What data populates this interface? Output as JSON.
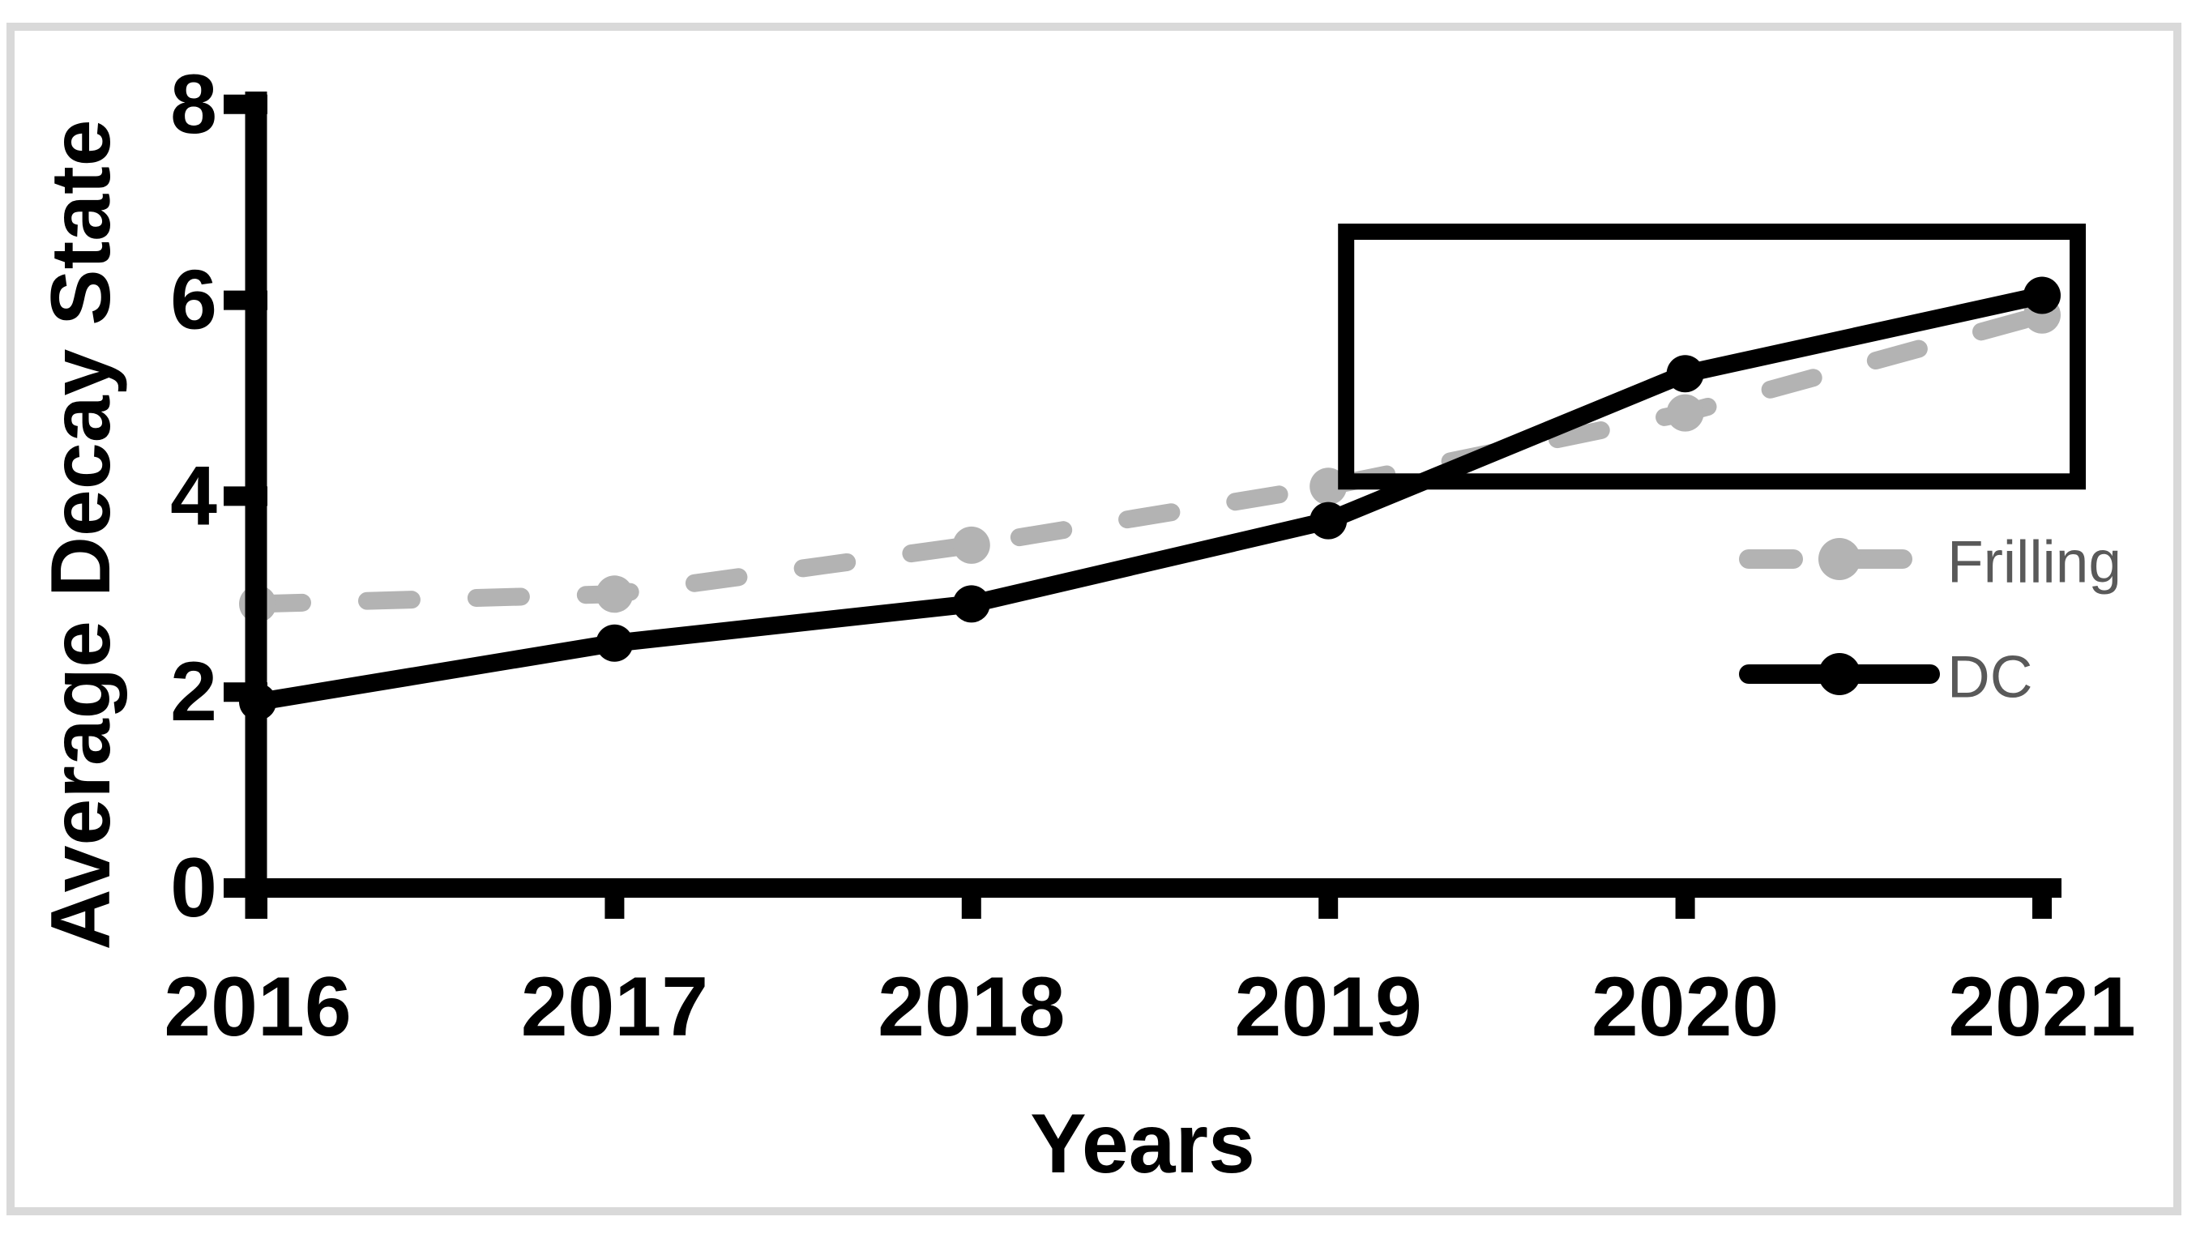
{
  "figure": {
    "type": "line-chart-figure",
    "background": "#ffffff"
  },
  "chart_data": {
    "type": "line",
    "title": "",
    "xlabel": "Years",
    "ylabel": "Average Decay State",
    "categories": [
      "2016",
      "2017",
      "2018",
      "2019",
      "2020",
      "2021"
    ],
    "y_ticks": [
      "0",
      "2",
      "4",
      "6",
      "8"
    ],
    "ylim": [
      0,
      8
    ],
    "grid": false,
    "legend_position": "right-middle",
    "series": [
      {
        "name": "Frilling",
        "color": "#b3b3b3",
        "line_style": "dashed",
        "marker": "circle",
        "values": [
          2.9,
          3.0,
          3.5,
          4.1,
          4.85,
          5.85
        ]
      },
      {
        "name": "DC",
        "color": "#000000",
        "line_style": "solid",
        "marker": "circle",
        "values": [
          1.9,
          2.5,
          2.9,
          3.75,
          5.25,
          6.05
        ]
      }
    ],
    "annotation_box": {
      "x_from_year": 2019.05,
      "x_to_year": 2021.1,
      "y_from": 4.15,
      "y_to": 6.7
    }
  },
  "colors": {
    "axis": "#000000",
    "legend_text": "#595959",
    "frame_border": "#d9d9d9",
    "background": "#ffffff"
  }
}
